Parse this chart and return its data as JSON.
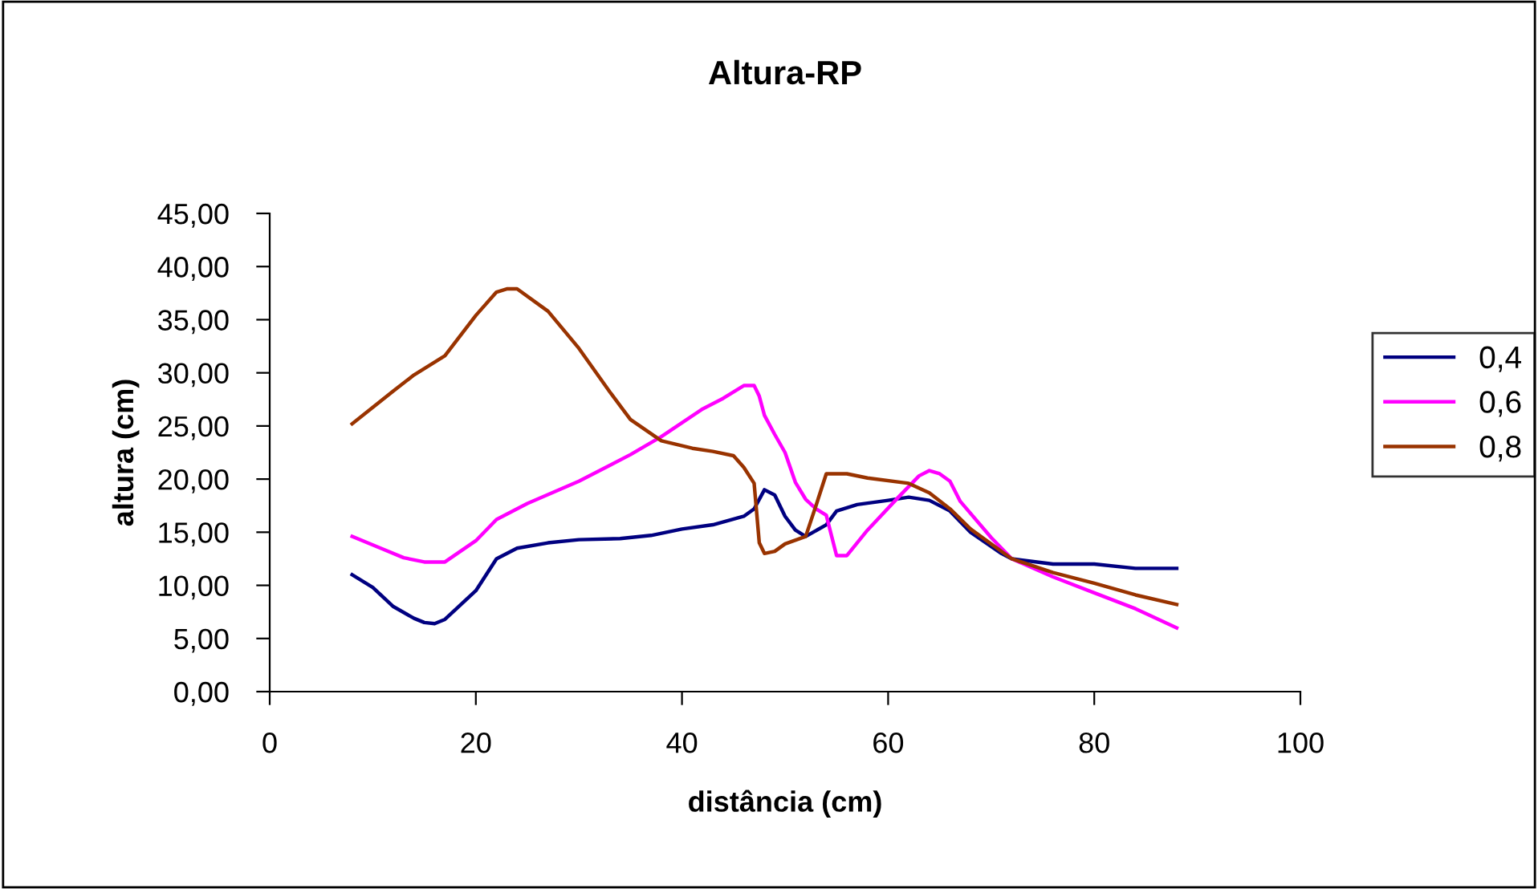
{
  "chart_data": {
    "type": "line",
    "title": "Altura-RP",
    "xlabel": "distância (cm)",
    "ylabel": "altura (cm)",
    "xlim": [
      0,
      100
    ],
    "xticks": [
      0,
      20,
      40,
      60,
      80,
      100
    ],
    "ylim": [
      0,
      45
    ],
    "yticks": [
      {
        "value": 0,
        "label": "0,00"
      },
      {
        "value": 5,
        "label": "5,00"
      },
      {
        "value": 10,
        "label": "10,00"
      },
      {
        "value": 15,
        "label": "15,00"
      },
      {
        "value": 20,
        "label": "20,00"
      },
      {
        "value": 25,
        "label": "25,00"
      },
      {
        "value": 30,
        "label": "30,00"
      },
      {
        "value": 35,
        "label": "35,00"
      },
      {
        "value": 40,
        "label": "40,00"
      },
      {
        "value": 45,
        "label": "45,00"
      }
    ],
    "grid": false,
    "legend": "right",
    "marker": "none",
    "line_style": "solid",
    "series": [
      {
        "name": "0,4",
        "color": "#000080",
        "x": [
          8,
          10,
          12,
          14,
          15,
          16,
          17,
          20,
          22,
          24,
          27,
          30,
          34,
          37,
          40,
          43,
          46,
          47,
          48,
          49,
          50,
          51,
          52,
          54,
          55,
          57,
          60,
          62,
          64,
          66,
          68,
          71,
          72,
          76,
          80,
          84,
          88
        ],
        "values": [
          11,
          9.8,
          8,
          6.9,
          6.5,
          6.4,
          6.8,
          9.5,
          12.5,
          13.5,
          14,
          14.3,
          14.4,
          14.7,
          15.3,
          15.7,
          16.5,
          17.2,
          19,
          18.5,
          16.5,
          15.2,
          14.6,
          15.7,
          17,
          17.6,
          18,
          18.3,
          18,
          17,
          15,
          13,
          12.5,
          12,
          12,
          11.6,
          11.6
        ]
      },
      {
        "name": "0,6",
        "color": "#ff00ff",
        "x": [
          8,
          11,
          13,
          15,
          17,
          20,
          22,
          25,
          30,
          35,
          38,
          42,
          44,
          46,
          47,
          47.5,
          48,
          49,
          50,
          51,
          52,
          53,
          54,
          55,
          56,
          58,
          61,
          63,
          64,
          65,
          66,
          67,
          70,
          72,
          76,
          80,
          84,
          88
        ],
        "values": [
          14.6,
          13.4,
          12.6,
          12.2,
          12.2,
          14.2,
          16.2,
          17.7,
          19.8,
          22.3,
          24,
          26.6,
          27.6,
          28.8,
          28.8,
          27.8,
          26,
          24.2,
          22.5,
          19.7,
          18.1,
          17.2,
          16.6,
          12.8,
          12.8,
          15.2,
          18.3,
          20.3,
          20.8,
          20.5,
          19.8,
          17.9,
          14.5,
          12.5,
          10.8,
          9.3,
          7.8,
          6
        ]
      },
      {
        "name": "0,8",
        "color": "#993300",
        "x": [
          8,
          12,
          14,
          17,
          20,
          22,
          23,
          24,
          27,
          30,
          33,
          35,
          38,
          41,
          43,
          45,
          46,
          47,
          47.5,
          48,
          49,
          50,
          52,
          53,
          54,
          56,
          58,
          62,
          64,
          66,
          68,
          72,
          76,
          80,
          84,
          88
        ],
        "values": [
          25.2,
          28.3,
          29.8,
          31.6,
          35.4,
          37.6,
          37.9,
          37.9,
          35.8,
          32.3,
          28.2,
          25.6,
          23.6,
          22.9,
          22.6,
          22.2,
          21.1,
          19.6,
          14,
          13,
          13.2,
          13.9,
          14.6,
          17.5,
          20.5,
          20.5,
          20.1,
          19.6,
          18.7,
          17.2,
          15.3,
          12.5,
          11.2,
          10.2,
          9.1,
          8.2
        ]
      }
    ]
  }
}
